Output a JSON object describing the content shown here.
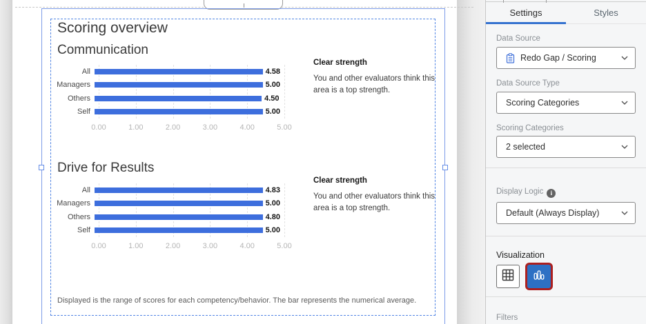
{
  "canvas": {
    "report_title": "Scoring overview",
    "caption": "Displayed is the range of scores for each competency/behavior. The bar represents the numerical average.",
    "sections": [
      {
        "callout_title": "Clear strength",
        "callout_body": "You and other evaluators think this area is a top strength."
      },
      {
        "callout_title": "Clear strength",
        "callout_body": "You and other evaluators think this area is a top strength."
      }
    ]
  },
  "chart_data": [
    {
      "type": "bar",
      "orientation": "horizontal",
      "title": "Communication",
      "categories": [
        "All",
        "Managers",
        "Others",
        "Self"
      ],
      "values": [
        4.58,
        5.0,
        4.5,
        5.0
      ],
      "value_labels": [
        "4.58",
        "5.00",
        "4.50",
        "5.00"
      ],
      "xlim": [
        0,
        5
      ],
      "ticks": [
        0,
        1,
        2,
        3,
        4,
        5
      ],
      "tick_labels": [
        "0.00",
        "1.00",
        "2.00",
        "3.00",
        "4.00",
        "5.00"
      ],
      "bar_color": "#3d6edd",
      "grid": true,
      "legend": "none"
    },
    {
      "type": "bar",
      "orientation": "horizontal",
      "title": "Drive for Results",
      "categories": [
        "All",
        "Managers",
        "Others",
        "Self"
      ],
      "values": [
        4.83,
        5.0,
        4.8,
        5.0
      ],
      "value_labels": [
        "4.83",
        "5.00",
        "4.80",
        "5.00"
      ],
      "xlim": [
        0,
        5
      ],
      "ticks": [
        0,
        1,
        2,
        3,
        4,
        5
      ],
      "tick_labels": [
        "0.00",
        "1.00",
        "2.00",
        "3.00",
        "4.00",
        "5.00"
      ],
      "bar_color": "#3d6edd",
      "grid": true,
      "legend": "none"
    }
  ],
  "panel": {
    "tabs": [
      {
        "label": "Settings",
        "active": true
      },
      {
        "label": "Styles",
        "active": false
      }
    ],
    "fields": [
      {
        "label": "Data Source",
        "value": "Redo Gap / Scoring",
        "icon": "clipboard-icon"
      },
      {
        "label": "Data Source Type",
        "value": "Scoring Categories"
      },
      {
        "label": "Scoring Categories",
        "value": "2 selected"
      },
      {
        "label": "Display Logic",
        "value": "Default (Always Display)",
        "info_icon": true
      }
    ],
    "info_icon_glyph": "i",
    "visualization_label": "Visualization",
    "filters_label": "Filters"
  },
  "colors": {
    "bar_blue": "#3d6edd",
    "accent_blue": "#3471cf",
    "selection_blue": "#7d9ce8",
    "viz_button_blue": "#2d70c4",
    "highlight_red": "#ab1f1f"
  }
}
